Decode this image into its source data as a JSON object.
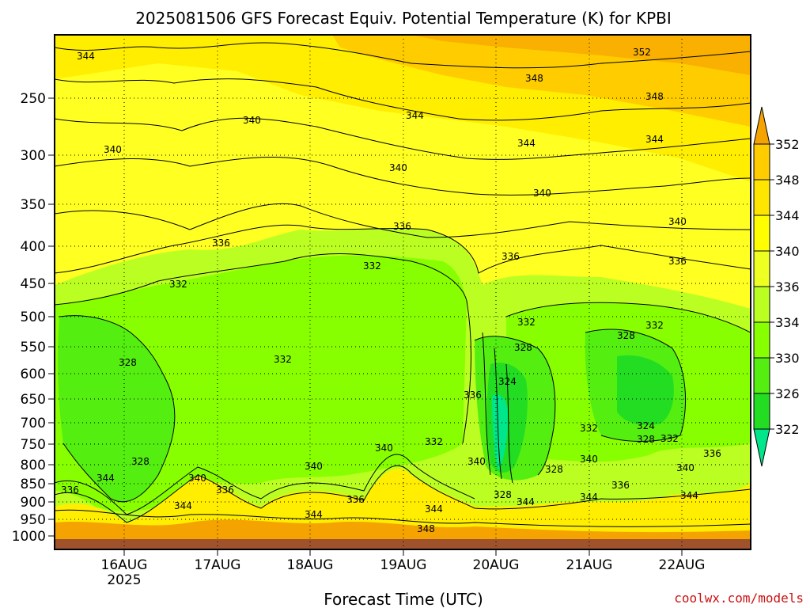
{
  "chart_data": {
    "type": "heatmap",
    "title": "2025081506 GFS Forecast Equiv. Potential Temperature (K) for KPBI",
    "xlabel": "Forecast Time (UTC)",
    "ylabel": "",
    "x_ticks": [
      "16AUG",
      "17AUG",
      "18AUG",
      "19AUG",
      "20AUG",
      "21AUG",
      "22AUG"
    ],
    "x_year_label": "2025",
    "y_ticks": [
      250,
      300,
      350,
      400,
      450,
      500,
      550,
      600,
      650,
      700,
      750,
      800,
      850,
      900,
      950,
      1000
    ],
    "ylim": [
      1010,
      200
    ],
    "y_scale": "log",
    "colorbar": {
      "levels": [
        322,
        326,
        330,
        334,
        336,
        340,
        344,
        348,
        352
      ],
      "colors": [
        "#00e68a",
        "#22dd22",
        "#55ee11",
        "#88ff00",
        "#bbff22",
        "#eeff22",
        "#ffee00",
        "#ffcc00",
        "#f5a300"
      ]
    },
    "contour_labels": [
      {
        "text": "344"
      },
      {
        "text": "352"
      },
      {
        "text": "348"
      },
      {
        "text": "348"
      },
      {
        "text": "344"
      },
      {
        "text": "340"
      },
      {
        "text": "340"
      },
      {
        "text": "344"
      },
      {
        "text": "344"
      },
      {
        "text": "340"
      },
      {
        "text": "340"
      },
      {
        "text": "336"
      },
      {
        "text": "336"
      },
      {
        "text": "340"
      },
      {
        "text": "332"
      },
      {
        "text": "336"
      },
      {
        "text": "336"
      },
      {
        "text": "332"
      },
      {
        "text": "332"
      },
      {
        "text": "328"
      },
      {
        "text": "332"
      },
      {
        "text": "328"
      },
      {
        "text": "328"
      },
      {
        "text": "324"
      },
      {
        "text": "336"
      },
      {
        "text": "332"
      },
      {
        "text": "340"
      },
      {
        "text": "332"
      },
      {
        "text": "324"
      },
      {
        "text": "328"
      },
      {
        "text": "332"
      },
      {
        "text": "340"
      },
      {
        "text": "336"
      },
      {
        "text": "328"
      },
      {
        "text": "332"
      },
      {
        "text": "340"
      },
      {
        "text": "336"
      },
      {
        "text": "344"
      },
      {
        "text": "340"
      },
      {
        "text": "328"
      },
      {
        "text": "340"
      },
      {
        "text": "336"
      },
      {
        "text": "344"
      },
      {
        "text": "336"
      },
      {
        "text": "340"
      },
      {
        "text": "344"
      },
      {
        "text": "344"
      },
      {
        "text": "344"
      },
      {
        "text": "348"
      },
      {
        "text": "328"
      },
      {
        "text": "344"
      },
      {
        "text": "344"
      },
      {
        "text": "336"
      }
    ],
    "legend": "colorbar-right",
    "grid": true,
    "ground_color": "#a0522d"
  },
  "credit": "coolwx.com/models"
}
